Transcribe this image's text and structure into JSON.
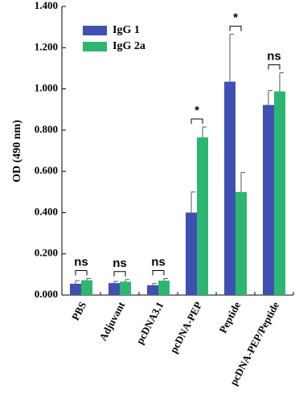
{
  "chart_data": {
    "type": "bar",
    "y_label": "OD (490 nm)",
    "categories": [
      "PBS",
      "Adjuvant",
      "pcDNA3.1",
      "pcDNA-PEP",
      "Peptide",
      "pcDNA-PEP/Peptide"
    ],
    "series": [
      {
        "name": "IgG 1",
        "color": "#4050b0",
        "values": [
          0.055,
          0.058,
          0.048,
          0.4,
          1.035,
          0.922
        ],
        "errors": [
          0.015,
          0.008,
          0.008,
          0.1,
          0.23,
          0.07
        ]
      },
      {
        "name": "IgG 2a",
        "color": "#2db671",
        "values": [
          0.072,
          0.065,
          0.07,
          0.765,
          0.5,
          0.988
        ],
        "errors": [
          0.008,
          0.01,
          0.01,
          0.05,
          0.095,
          0.09
        ]
      }
    ],
    "annotations": [
      "ns",
      "ns",
      "ns",
      "*",
      "*",
      "ns"
    ],
    "ylim": [
      0,
      1.4
    ],
    "yticks": [
      {
        "value": 0,
        "label": "0.000"
      },
      {
        "value": 0.2,
        "label": "0.200"
      },
      {
        "value": 0.4,
        "label": "0.400"
      },
      {
        "value": 0.6,
        "label": "0.600"
      },
      {
        "value": 0.8,
        "label": "0.800"
      },
      {
        "value": 1,
        "label": "1.000"
      },
      {
        "value": 1.2,
        "label": "1.200"
      },
      {
        "value": 1.4,
        "label": "1.400"
      }
    ],
    "legend": "upper left"
  }
}
